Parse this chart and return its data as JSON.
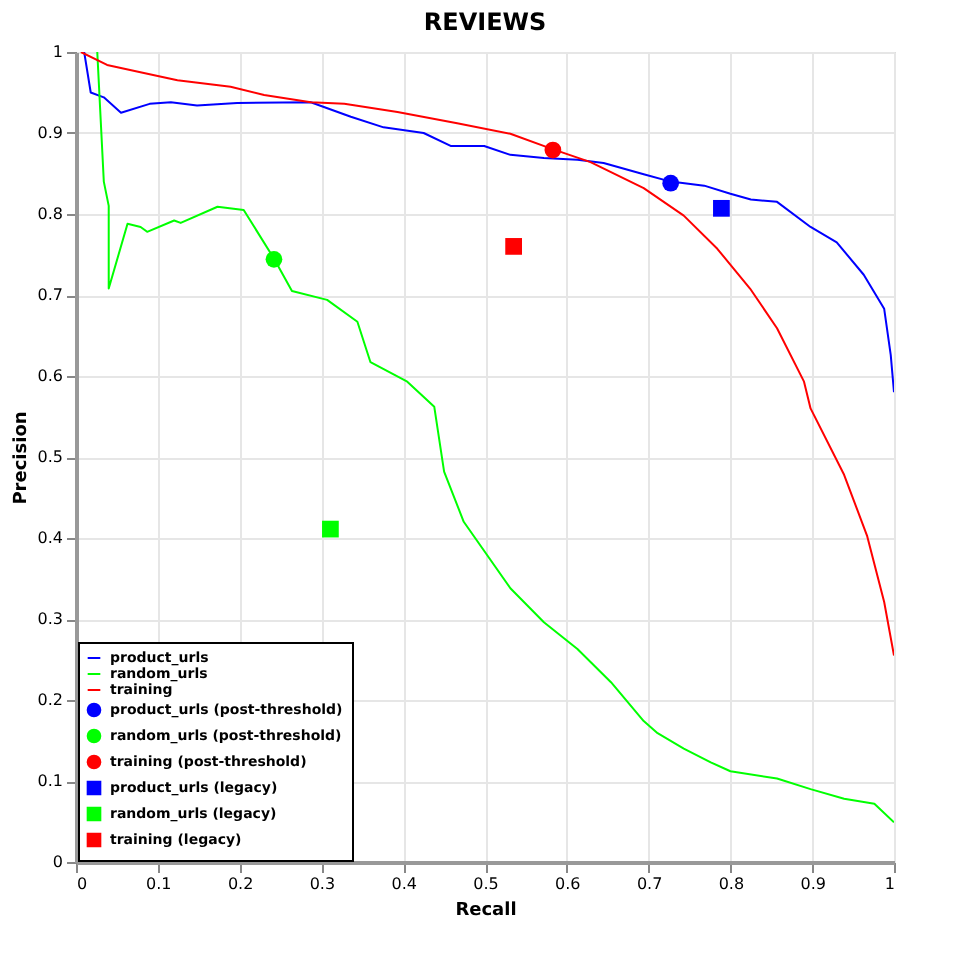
{
  "chart_data": {
    "type": "line",
    "title": "REVIEWS",
    "xlabel": "Recall",
    "ylabel": "Precision",
    "xlim": [
      0,
      1
    ],
    "ylim": [
      0,
      1
    ],
    "xticks": [
      0,
      0.1,
      0.2,
      0.3,
      0.4,
      0.5,
      0.6,
      0.7,
      0.8,
      0.9,
      1
    ],
    "yticks": [
      0,
      0.1,
      0.2,
      0.3,
      0.4,
      0.5,
      0.6,
      0.7,
      0.8,
      0.9,
      1
    ],
    "grid": true,
    "legend": "bottom left",
    "series": [
      {
        "name": "product_urls",
        "type": "line",
        "marker": "none",
        "color": "#0000ff",
        "x": [
          0.01,
          0.018,
          0.034,
          0.055,
          0.09,
          0.116,
          0.148,
          0.197,
          0.287,
          0.336,
          0.376,
          0.425,
          0.458,
          0.499,
          0.531,
          0.572,
          0.613,
          0.645,
          0.694,
          0.727,
          0.768,
          0.8,
          0.825,
          0.857,
          0.898,
          0.93,
          0.963,
          0.988,
          0.996,
          1.0
        ],
        "values": [
          1.0,
          0.95,
          0.944,
          0.925,
          0.936,
          0.938,
          0.934,
          0.937,
          0.938,
          0.92,
          0.907,
          0.9,
          0.884,
          0.884,
          0.873,
          0.869,
          0.867,
          0.863,
          0.849,
          0.84,
          0.835,
          0.825,
          0.818,
          0.815,
          0.784,
          0.765,
          0.725,
          0.683,
          0.626,
          0.58
        ]
      },
      {
        "name": "random_urls",
        "type": "line",
        "marker": "none",
        "color": "#00ff00",
        "x": [
          0.026,
          0.034,
          0.04,
          0.04,
          0.063,
          0.079,
          0.087,
          0.12,
          0.128,
          0.173,
          0.205,
          0.242,
          0.264,
          0.307,
          0.344,
          0.36,
          0.405,
          0.438,
          0.45,
          0.474,
          0.531,
          0.572,
          0.613,
          0.654,
          0.694,
          0.711,
          0.743,
          0.776,
          0.8,
          0.857,
          0.898,
          0.939,
          0.976,
          1.0
        ],
        "values": [
          1.0,
          0.84,
          0.81,
          0.708,
          0.788,
          0.784,
          0.778,
          0.792,
          0.789,
          0.809,
          0.805,
          0.745,
          0.705,
          0.694,
          0.667,
          0.617,
          0.593,
          0.562,
          0.482,
          0.42,
          0.338,
          0.296,
          0.263,
          0.222,
          0.174,
          0.159,
          0.14,
          0.123,
          0.112,
          0.103,
          0.09,
          0.078,
          0.072,
          0.049
        ]
      },
      {
        "name": "training",
        "type": "line",
        "marker": "none",
        "color": "#ff0000",
        "x": [
          0.006,
          0.038,
          0.083,
          0.124,
          0.189,
          0.23,
          0.287,
          0.328,
          0.393,
          0.466,
          0.531,
          0.58,
          0.629,
          0.694,
          0.743,
          0.784,
          0.824,
          0.857,
          0.89,
          0.898,
          0.939,
          0.967,
          0.988,
          1.0
        ],
        "values": [
          1.0,
          0.984,
          0.974,
          0.965,
          0.957,
          0.947,
          0.938,
          0.936,
          0.926,
          0.912,
          0.899,
          0.881,
          0.864,
          0.832,
          0.798,
          0.757,
          0.708,
          0.659,
          0.593,
          0.56,
          0.478,
          0.403,
          0.321,
          0.255
        ]
      },
      {
        "name": "product_urls (post-threshold)",
        "type": "scatter",
        "marker": "circle",
        "color": "#0000ff",
        "x": [
          0.727
        ],
        "values": [
          0.838
        ]
      },
      {
        "name": "random_urls (post-threshold)",
        "type": "scatter",
        "marker": "circle",
        "color": "#00ff00",
        "x": [
          0.242
        ],
        "values": [
          0.744
        ]
      },
      {
        "name": "training (post-threshold)",
        "type": "scatter",
        "marker": "circle",
        "color": "#ff0000",
        "x": [
          0.583
        ],
        "values": [
          0.879
        ]
      },
      {
        "name": "product_urls (legacy)",
        "type": "scatter",
        "marker": "square",
        "color": "#0000ff",
        "x": [
          0.789
        ],
        "values": [
          0.807
        ]
      },
      {
        "name": "random_urls (legacy)",
        "type": "scatter",
        "marker": "square",
        "color": "#00ff00",
        "x": [
          0.311
        ],
        "values": [
          0.411
        ]
      },
      {
        "name": "training (legacy)",
        "type": "scatter",
        "marker": "square",
        "color": "#ff0000",
        "x": [
          0.535
        ],
        "values": [
          0.76
        ]
      }
    ]
  }
}
